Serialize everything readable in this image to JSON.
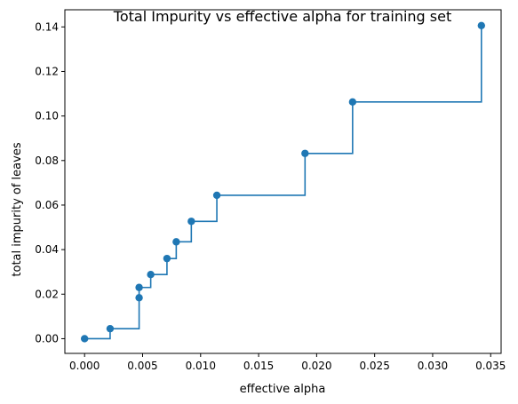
{
  "chart_data": {
    "type": "line",
    "title": "Total Impurity vs effective alpha for training set",
    "xlabel": "effective alpha",
    "ylabel": "total impurity of leaves",
    "xlim": [
      -0.0017,
      0.0359
    ],
    "ylim": [
      -0.0066,
      0.1477
    ],
    "xticks": [
      0.0,
      0.005,
      0.01,
      0.015,
      0.02,
      0.025,
      0.03,
      0.035
    ],
    "xtick_labels": [
      "0.000",
      "0.005",
      "0.010",
      "0.015",
      "0.020",
      "0.025",
      "0.030",
      "0.035"
    ],
    "yticks": [
      0.0,
      0.02,
      0.04,
      0.06,
      0.08,
      0.1,
      0.12,
      0.14
    ],
    "ytick_labels": [
      "0.00",
      "0.02",
      "0.04",
      "0.06",
      "0.08",
      "0.10",
      "0.12",
      "0.14"
    ],
    "grid": false,
    "drawstyle": "steps-post",
    "marker": "circle",
    "color": "#1f77b4",
    "series": [
      {
        "x": [
          0.0,
          0.0022,
          0.0047,
          0.0047,
          0.0057,
          0.0071,
          0.0079,
          0.0092,
          0.0114,
          0.019,
          0.0231,
          0.0342
        ],
        "y": [
          0.0,
          0.0045,
          0.0184,
          0.023,
          0.0288,
          0.036,
          0.0435,
          0.0527,
          0.0644,
          0.0832,
          0.1063,
          0.1406
        ]
      }
    ]
  }
}
